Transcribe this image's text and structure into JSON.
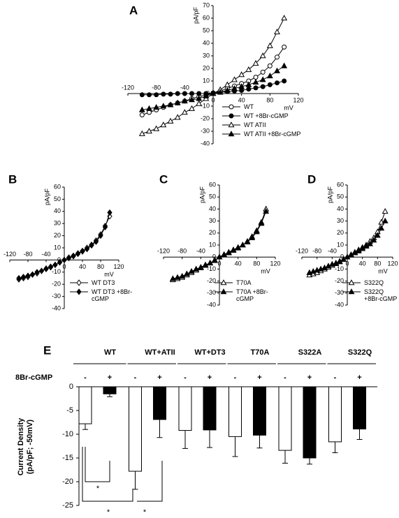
{
  "chart_data": [
    {
      "type": "line",
      "panel_label": "A",
      "x_label": "mV",
      "y_label": "pA/pF",
      "x": [
        -100,
        -90,
        -80,
        -70,
        -60,
        -50,
        -40,
        -30,
        -20,
        -10,
        0,
        10,
        20,
        30,
        40,
        50,
        60,
        70,
        80,
        90,
        100
      ],
      "xlim": [
        -120,
        120
      ],
      "ylim": [
        -40,
        70
      ],
      "xticks": [
        -120,
        -80,
        -40,
        0,
        40,
        80,
        120
      ],
      "yticks": [
        -40,
        -30,
        -20,
        -10,
        0,
        10,
        20,
        30,
        40,
        50,
        60,
        70
      ],
      "legend": "lower-right",
      "series": [
        {
          "name": "WT",
          "color": "#000000",
          "marker": "open-circle",
          "values": [
            -17,
            -15,
            -13,
            -11,
            -9,
            -7.5,
            -6,
            -4,
            -2.5,
            -1,
            0.5,
            2,
            4,
            6,
            8,
            10,
            13,
            17,
            22,
            29,
            37
          ]
        },
        {
          "name": "WT +8Br-cGMP",
          "color": "#000000",
          "marker": "filled-circle",
          "values": [
            -1,
            -1,
            -1,
            -0.5,
            -0.5,
            0,
            0,
            0,
            0,
            0,
            0.5,
            1,
            1.5,
            2,
            2.5,
            3.5,
            4.5,
            5.5,
            7,
            8.5,
            10
          ]
        },
        {
          "name": "WT ATII",
          "color": "#000000",
          "marker": "open-triangle",
          "values": [
            -32,
            -30,
            -28,
            -25,
            -22,
            -19,
            -15,
            -12,
            -8,
            -4,
            0,
            3,
            7,
            11,
            15,
            19,
            24,
            30,
            38,
            49,
            60
          ]
        },
        {
          "name": "WT ATII +8Br-cGMP",
          "color": "#000000",
          "marker": "filled-triangle",
          "values": [
            -13,
            -12,
            -11,
            -10,
            -9,
            -7.5,
            -6,
            -5,
            -4,
            -2,
            0,
            1,
            2.5,
            4,
            5.5,
            7,
            9,
            11,
            14,
            18,
            22
          ]
        }
      ]
    },
    {
      "type": "line",
      "panel_label": "B",
      "x_label": "mV",
      "y_label": "pA/pF",
      "x": [
        -100,
        -90,
        -80,
        -70,
        -60,
        -50,
        -40,
        -30,
        -20,
        -10,
        0,
        10,
        20,
        30,
        40,
        50,
        60,
        70,
        80,
        90,
        100
      ],
      "xlim": [
        -120,
        120
      ],
      "ylim": [
        -40,
        60
      ],
      "xticks": [
        -120,
        -80,
        -40,
        0,
        40,
        80,
        120
      ],
      "yticks": [
        -40,
        -30,
        -20,
        -10,
        0,
        10,
        20,
        30,
        40,
        50,
        60
      ],
      "legend": "lower-right",
      "series": [
        {
          "name": "WT DT3",
          "color": "#000000",
          "marker": "open-diamond",
          "values": [
            -16,
            -15,
            -14,
            -12,
            -11,
            -9,
            -7.5,
            -6,
            -4,
            -2,
            0,
            2,
            3.5,
            5.5,
            7.5,
            10,
            12.5,
            16,
            21,
            28,
            36
          ]
        },
        {
          "name": "WT DT3 +8Br-cGMP",
          "color": "#000000",
          "marker": "filled-diamond",
          "values": [
            -15,
            -14,
            -13,
            -12,
            -10,
            -9,
            -7,
            -5.5,
            -4,
            -2,
            0,
            1.5,
            3,
            5,
            7,
            9,
            12,
            15,
            20,
            27,
            39
          ]
        }
      ]
    },
    {
      "type": "line",
      "panel_label": "C",
      "x_label": "mV",
      "y_label": "pA/pF",
      "x": [
        -100,
        -90,
        -80,
        -70,
        -60,
        -50,
        -40,
        -30,
        -20,
        -10,
        0,
        10,
        20,
        30,
        40,
        50,
        60,
        70,
        80,
        90,
        100
      ],
      "xlim": [
        -120,
        120
      ],
      "ylim": [
        -40,
        60
      ],
      "xticks": [
        -120,
        -80,
        -40,
        0,
        40,
        80,
        120
      ],
      "yticks": [
        -40,
        -30,
        -20,
        -10,
        0,
        10,
        20,
        30,
        40,
        50,
        60
      ],
      "legend": "lower-right",
      "series": [
        {
          "name": "T70A",
          "color": "#000000",
          "marker": "open-triangle",
          "values": [
            -19,
            -18,
            -17,
            -15,
            -13,
            -11,
            -9,
            -7,
            -5,
            -3,
            0,
            2,
            4,
            6,
            8,
            10,
            13,
            17,
            22,
            29,
            40
          ]
        },
        {
          "name": "T70A +8Br-cGMP",
          "color": "#000000",
          "marker": "filled-triangle",
          "values": [
            -18,
            -17,
            -16,
            -14,
            -12,
            -10,
            -8.5,
            -6.5,
            -5,
            -2.5,
            0,
            2,
            3.5,
            5.5,
            7.5,
            10,
            12.5,
            16,
            21,
            28,
            38
          ]
        }
      ]
    },
    {
      "type": "line",
      "panel_label": "D",
      "x_label": "mV",
      "y_label": "pA/pF",
      "x": [
        -100,
        -90,
        -80,
        -70,
        -60,
        -50,
        -40,
        -30,
        -20,
        -10,
        0,
        10,
        20,
        30,
        40,
        50,
        60,
        70,
        80,
        90,
        100
      ],
      "xlim": [
        -120,
        120
      ],
      "ylim": [
        -40,
        60
      ],
      "xticks": [
        -120,
        -80,
        -40,
        0,
        40,
        80,
        120
      ],
      "yticks": [
        -40,
        -30,
        -20,
        -10,
        0,
        10,
        20,
        30,
        40,
        50,
        60
      ],
      "legend": "lower-right",
      "series": [
        {
          "name": "S322Q",
          "color": "#000000",
          "marker": "open-triangle",
          "values": [
            -15,
            -14,
            -13,
            -11.5,
            -10,
            -8.5,
            -7,
            -5.5,
            -4,
            -2,
            0,
            2,
            4,
            6,
            8,
            10,
            13,
            16,
            21,
            29,
            38
          ]
        },
        {
          "name": "S322Q +8Br-cGMP",
          "color": "#000000",
          "marker": "filled-triangle",
          "values": [
            -13,
            -12,
            -11,
            -10,
            -9,
            -7.5,
            -6,
            -5,
            -3.5,
            -2,
            0,
            1.5,
            3.5,
            5,
            7,
            9,
            11,
            14,
            18,
            24,
            30
          ]
        }
      ]
    },
    {
      "type": "bar",
      "panel_label": "E",
      "categories": [
        "WT",
        "WT+ATII",
        "WT+DT3",
        "T70A",
        "S322A",
        "S322Q"
      ],
      "row_label": "8Br-cGMP",
      "y_label": [
        "Current Density",
        "(pA/pF; -50mV)"
      ],
      "ylim": [
        -25,
        0
      ],
      "yticks": [
        -25,
        -20,
        -15,
        -10,
        -5,
        0
      ],
      "series": [
        {
          "name": "-",
          "color": "#ffffff",
          "values": [
            -7.8,
            -17.8,
            -9.2,
            -10.5,
            -13.4,
            -11.6
          ],
          "errors": [
            1.2,
            3.8,
            3.8,
            4.2,
            2.7,
            2.3
          ]
        },
        {
          "name": "+",
          "color": "#000000",
          "values": [
            -1.5,
            -6.9,
            -9.1,
            -10.2,
            -15,
            -8.9
          ],
          "errors": [
            0.6,
            3.8,
            3.7,
            2.7,
            1.3,
            2.2
          ]
        }
      ],
      "annotations": [
        "*",
        "*",
        "*"
      ]
    }
  ]
}
